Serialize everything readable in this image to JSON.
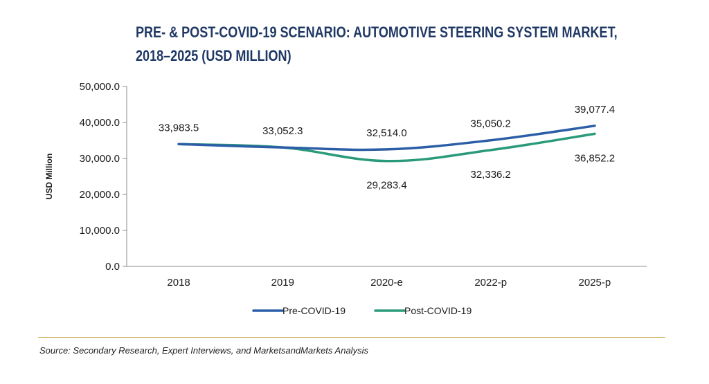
{
  "chart_data": {
    "type": "line",
    "title_line1": "PRE- & POST-COVID-19 SCENARIO: AUTOMOTIVE STEERING SYSTEM MARKET,",
    "title_line2": "2018–2025 (USD MILLION)",
    "ylabel": "USD Million",
    "xlabel": "",
    "categories": [
      "2018",
      "2019",
      "2020-e",
      "2022-p",
      "2025-p"
    ],
    "ylim": [
      0,
      50000
    ],
    "yticks": [
      0,
      10000,
      20000,
      30000,
      40000,
      50000
    ],
    "ytick_labels": [
      "0.0",
      "10,000.0",
      "20,000.0",
      "30,000.0",
      "40,000.0",
      "50,000.0"
    ],
    "series": [
      {
        "name": "Pre-COVID-19",
        "color": "#2b5ea7",
        "values": [
          33983.5,
          33052.3,
          32514.0,
          35050.2,
          39077.4
        ],
        "labels": [
          "33,983.5",
          "33,052.3",
          "32,514.0",
          "35,050.2",
          "39,077.4"
        ]
      },
      {
        "name": "Post-COVID-19",
        "color": "#2a9a7a",
        "values": [
          33983.5,
          33052.3,
          29283.4,
          32336.2,
          36852.2
        ],
        "labels": [
          "",
          "",
          "29,283.4",
          "32,336.2",
          "36,852.2"
        ]
      }
    ],
    "legend_position": "bottom-center",
    "grid": false
  },
  "footer": {
    "source": "Source: Secondary Research, Expert Interviews, and MarketsandMarkets Analysis"
  }
}
